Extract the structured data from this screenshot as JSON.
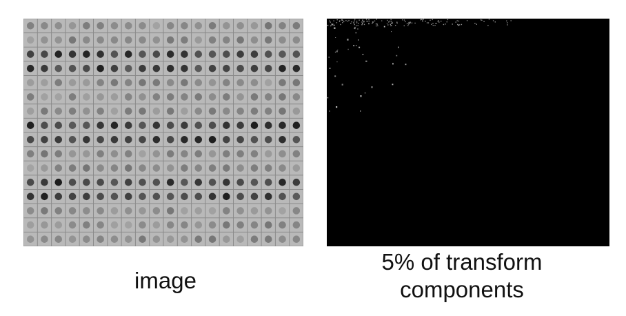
{
  "left_panel": {
    "caption": "image",
    "colors": {
      "background": "#b9b9b9",
      "gridline": "#8a8a8a",
      "dot_light": "#a3a3a3",
      "dot_dark": "#1e1e1e"
    }
  },
  "right_panel": {
    "caption_line1": "5% of transform",
    "caption_line2": "components",
    "colors": {
      "background": "#000000",
      "speckle": "#c8c8c8"
    }
  }
}
